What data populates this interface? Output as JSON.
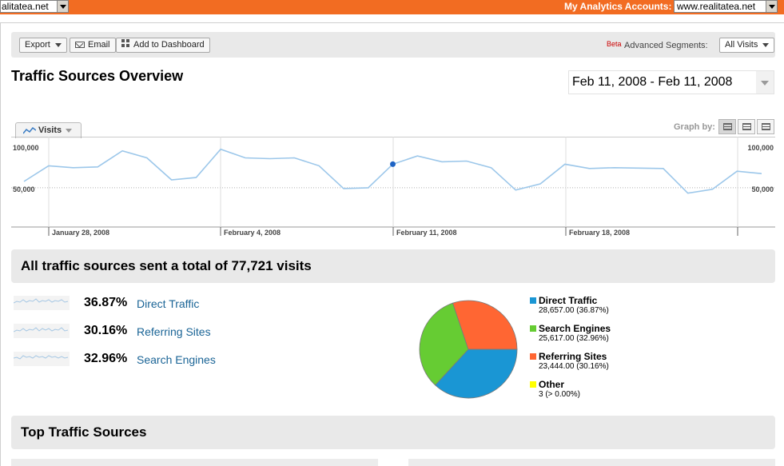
{
  "topbar": {
    "left_site": "alitatea.net",
    "accounts_label": "My Analytics Accounts:",
    "right_site": "www.realitatea.net"
  },
  "toolbar": {
    "export_label": "Export",
    "email_label": "Email",
    "dashboard_label": "Add to Dashboard",
    "beta_label": "Beta",
    "segments_label": "Advanced Segments:",
    "segments_value": "All Visits"
  },
  "page": {
    "title": "Traffic Sources Overview",
    "date_range": "Feb 11, 2008 - Feb 11, 2008"
  },
  "graph": {
    "tab_label": "Visits",
    "graph_by_label": "Graph by:",
    "graph_by_options": [
      "day",
      "week",
      "month"
    ],
    "y_left_top": "100,000",
    "y_left_mid": "50,000",
    "y_right_top": "100,000",
    "y_right_mid": "50,000",
    "x_labels": [
      "January 28, 2008",
      "February 4, 2008",
      "February 11, 2008",
      "February 18, 2008"
    ]
  },
  "chart_data": {
    "type": "line",
    "series": [
      {
        "values": [
          58000,
          78000,
          75500,
          76500,
          97000,
          88000,
          60000,
          63000,
          99000,
          88000,
          87000,
          88000,
          78000,
          49000,
          50000,
          80000,
          90500,
          83000,
          84000,
          75500,
          47000,
          55000,
          80000,
          74500,
          75500,
          75000,
          74500,
          43000,
          48000,
          71000,
          68000
        ]
      }
    ],
    "highlight_index": 15,
    "ylim": [
      0,
      115000
    ],
    "yticks": [
      50000,
      100000
    ],
    "color": "#9cc7ea",
    "grid": true
  },
  "summary": {
    "text": "All traffic sources sent a total of 77,721 visits"
  },
  "sources": [
    {
      "pct": "36.87%",
      "name": "Direct Traffic"
    },
    {
      "pct": "30.16%",
      "name": "Referring Sites"
    },
    {
      "pct": "32.96%",
      "name": "Search Engines"
    }
  ],
  "pie": {
    "slices": [
      {
        "name": "Direct Traffic",
        "value": 28657,
        "color": "#1a96d4"
      },
      {
        "name": "Search Engines",
        "value": 25617,
        "color": "#66cc33"
      },
      {
        "name": "Referring Sites",
        "value": 23444,
        "color": "#ff6633"
      },
      {
        "name": "Other",
        "value": 3,
        "color": "#ffff00"
      }
    ]
  },
  "legend": [
    {
      "name": "Direct Traffic",
      "value": "28,657.00 (36.87%)",
      "color": "#1a96d4"
    },
    {
      "name": "Search Engines",
      "value": "25,617.00 (32.96%)",
      "color": "#66cc33"
    },
    {
      "name": "Referring Sites",
      "value": "23,444.00 (30.16%)",
      "color": "#ff6633"
    },
    {
      "name": "Other",
      "value": "3 (> 0.00%)",
      "color": "#ffff00"
    }
  ],
  "top_sources": {
    "title": "Top Traffic Sources"
  }
}
